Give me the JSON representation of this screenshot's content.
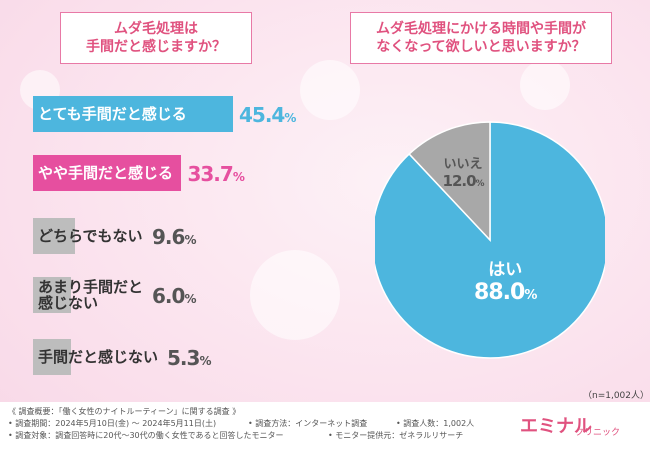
{
  "colors": {
    "blue": "#4db6de",
    "pink": "#e64f9f",
    "gray": "#bdbdbd",
    "gray_slice": "#a8a8a8"
  },
  "question_left": {
    "line1": "ムダ毛処理は",
    "line2": "手間だと感じますか？"
  },
  "question_right": {
    "line1": "ムダ毛処理にかける時間や手間が",
    "line2": "なくなって欲しいと思いますか？"
  },
  "chart_data": [
    {
      "type": "bar",
      "orientation": "horizontal",
      "categories": [
        "とても手間だと感じる",
        "やや手間だと感じる",
        "どちらでもない",
        "あまり手間だと感じない",
        "手間だと感じない"
      ],
      "values": [
        45.4,
        33.7,
        9.6,
        6.0,
        5.3
      ],
      "value_labels": [
        {
          "number": "45.4",
          "unit": "%"
        },
        {
          "number": "33.7",
          "unit": "%"
        },
        {
          "number": "9.6",
          "unit": "%"
        },
        {
          "number": "6.0",
          "unit": "%"
        },
        {
          "number": "5.3",
          "unit": "%"
        }
      ],
      "label_lines": [
        [
          "とても手間だと感じる"
        ],
        [
          "やや手間だと感じる"
        ],
        [
          "どちらでもない"
        ],
        [
          "あまり手間だと",
          "感じない"
        ],
        [
          "手間だと感じない"
        ]
      ],
      "title": "ムダ毛処理は手間だと感じますか？"
    },
    {
      "type": "pie",
      "labels": [
        "はい",
        "いいえ"
      ],
      "values": [
        88.0,
        12.0
      ],
      "value_labels": [
        {
          "number": "88.0",
          "unit": "%"
        },
        {
          "number": "12.0",
          "unit": "%"
        }
      ],
      "title": "ムダ毛処理にかける時間や手間がなくなって欲しいと思いますか？"
    }
  ],
  "sample_note": "（n=1,002人）",
  "footer": {
    "line1": "《 調査概要：「働く女性のナイトルーティーン」に関する調査 》",
    "line2a": "• 調査期間：2024年5月10日(金) ～ 2024年5月11日(土)",
    "line2b": "• 調査方法：インターネット調査",
    "line2c": "• 調査人数：1,002人",
    "line3a": "• 調査対象：調査回答時に20代～30代の働く女性であると回答したモニター",
    "line3b": "• モニター提供元：ゼネラルリサーチ"
  },
  "logo": {
    "main": "エミナル",
    "sub": "クリニック"
  }
}
